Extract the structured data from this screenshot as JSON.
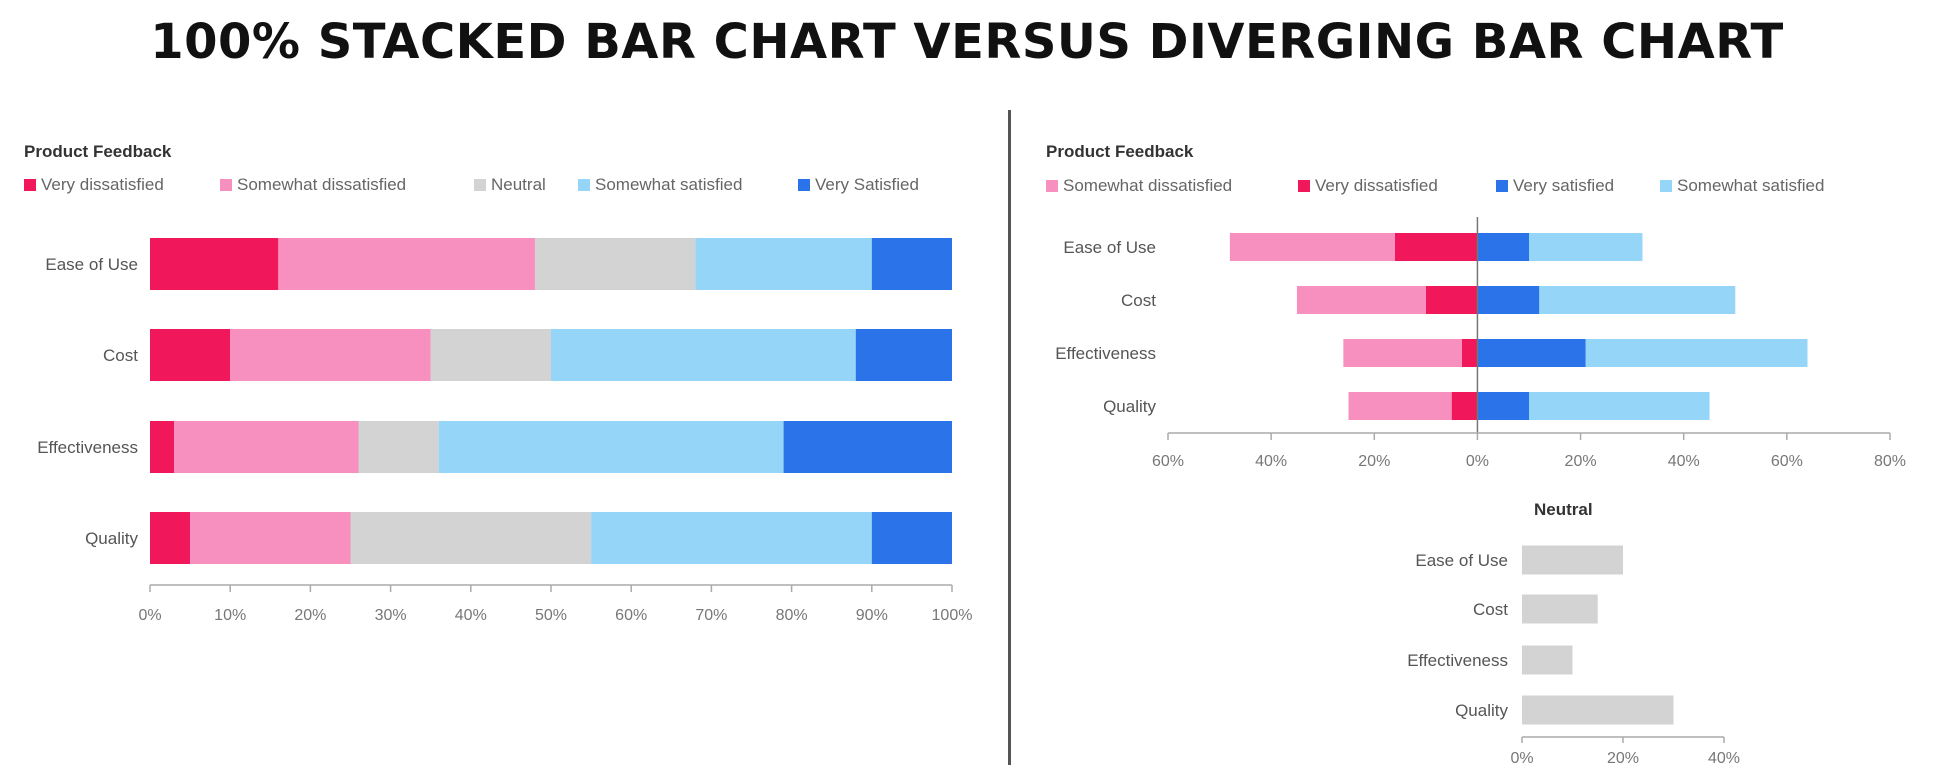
{
  "page_title": "100% STACKED BAR CHART VERSUS DIVERGING BAR CHART",
  "chart_data": [
    {
      "type": "bar",
      "stacked": true,
      "orientation": "horizontal",
      "title": "Product Feedback",
      "categories": [
        "Ease of Use",
        "Cost",
        "Effectiveness",
        "Quality"
      ],
      "legend_position": "top",
      "series": [
        {
          "name": "Very dissatisfied",
          "color": "#f0185a",
          "values": [
            16,
            10,
            3,
            5
          ]
        },
        {
          "name": "Somewhat dissatisfied",
          "color": "#f78fbf",
          "values": [
            32,
            25,
            23,
            20
          ]
        },
        {
          "name": "Neutral",
          "color": "#d3d3d3",
          "values": [
            20,
            15,
            10,
            30
          ]
        },
        {
          "name": "Somewhat satisfied",
          "color": "#95d6f8",
          "values": [
            22,
            38,
            43,
            35
          ]
        },
        {
          "name": "Very Satisfied",
          "color": "#2a73e8",
          "values": [
            10,
            12,
            21,
            10
          ]
        }
      ],
      "xlim": [
        0,
        100
      ],
      "x_ticks": [
        "0%",
        "10%",
        "20%",
        "30%",
        "40%",
        "50%",
        "60%",
        "70%",
        "80%",
        "90%",
        "100%"
      ],
      "grid": false
    },
    {
      "type": "bar",
      "diverging": true,
      "orientation": "horizontal",
      "title": "Product Feedback",
      "categories": [
        "Ease of Use",
        "Cost",
        "Effectiveness",
        "Quality"
      ],
      "legend_position": "top",
      "series": [
        {
          "name": "Somewhat dissatisfied",
          "color": "#f78fbf",
          "values": [
            -32,
            -25,
            -23,
            -20
          ]
        },
        {
          "name": "Very dissatisfied",
          "color": "#f0185a",
          "values": [
            -16,
            -10,
            -3,
            -5
          ]
        },
        {
          "name": "Very satisfied",
          "color": "#2a73e8",
          "values": [
            10,
            12,
            21,
            10
          ]
        },
        {
          "name": "Somewhat satisfied",
          "color": "#95d6f8",
          "values": [
            22,
            38,
            43,
            35
          ]
        }
      ],
      "xlim": [
        -60,
        80
      ],
      "x_ticks": [
        "60%",
        "40%",
        "20%",
        "0%",
        "20%",
        "40%",
        "60%",
        "80%"
      ],
      "grid": false
    },
    {
      "type": "bar",
      "orientation": "horizontal",
      "title": "Neutral",
      "categories": [
        "Ease of Use",
        "Cost",
        "Effectiveness",
        "Quality"
      ],
      "series": [
        {
          "color": "#d3d3d3",
          "values": [
            20,
            15,
            10,
            30
          ]
        }
      ],
      "xlim": [
        0,
        40
      ],
      "x_ticks": [
        "0%",
        "20%",
        "40%"
      ],
      "grid": false
    }
  ]
}
